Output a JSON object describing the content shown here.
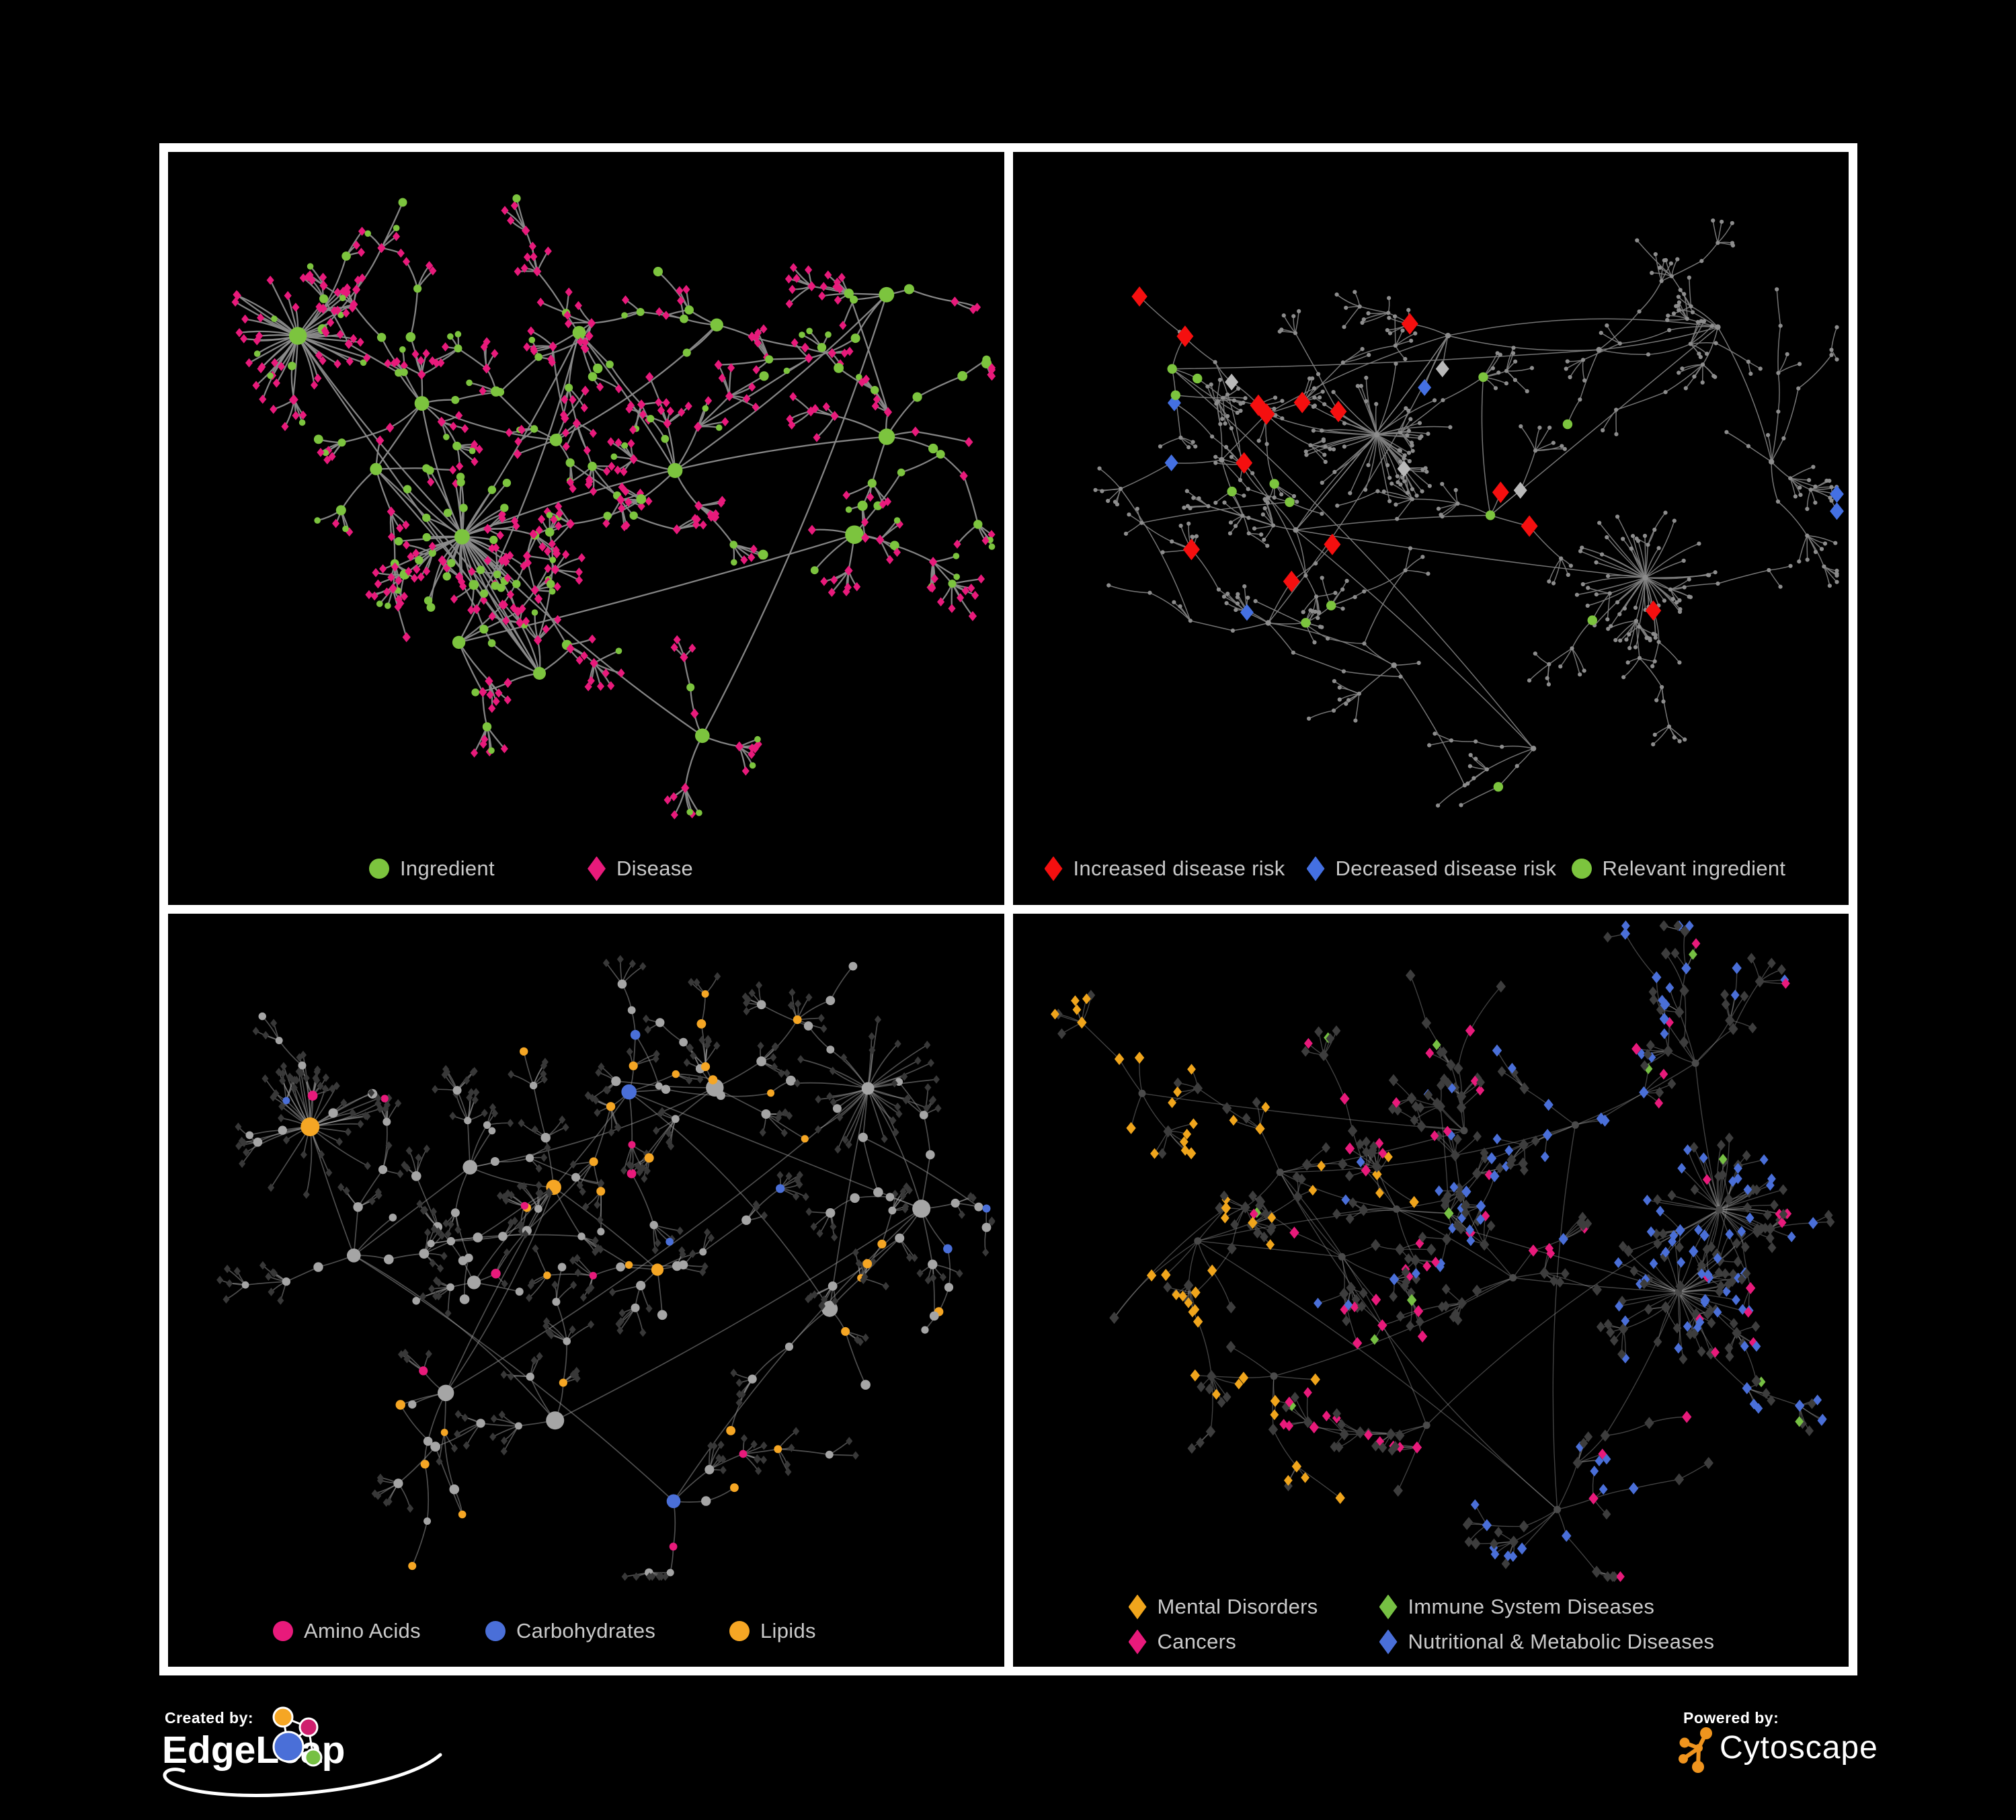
{
  "figure": {
    "background": "#000000",
    "frame_color": "#ffffff",
    "legend_text_color": "#c9c9c9"
  },
  "panels": [
    {
      "id": "ingredient-disease",
      "legend": [
        {
          "label": "Ingredient",
          "shape": "circle",
          "color": "#7cc43e"
        },
        {
          "label": "Disease",
          "shape": "diamond",
          "color": "#e81a7b"
        }
      ]
    },
    {
      "id": "disease-risk",
      "legend": [
        {
          "label": "Increased disease risk",
          "shape": "diamond",
          "color": "#f50f0f"
        },
        {
          "label": "Decreased disease risk",
          "shape": "diamond",
          "color": "#4470e2"
        },
        {
          "label": "Relevant ingredient",
          "shape": "circle",
          "color": "#7cc43e"
        }
      ]
    },
    {
      "id": "nutrient-classes",
      "legend": [
        {
          "label": "Amino Acids",
          "shape": "circle",
          "color": "#e81a7b"
        },
        {
          "label": "Carbohydrates",
          "shape": "circle",
          "color": "#4a6fd8"
        },
        {
          "label": "Lipids",
          "shape": "circle",
          "color": "#f5a624"
        }
      ]
    },
    {
      "id": "disease-classes",
      "legend": [
        {
          "label": "Mental Disorders",
          "shape": "diamond",
          "color": "#f0a51c"
        },
        {
          "label": "Immune System Diseases",
          "shape": "diamond",
          "color": "#76c043"
        },
        {
          "label": "Cancers",
          "shape": "diamond",
          "color": "#e81a7b"
        },
        {
          "label": "Nutritional & Metabolic Diseases",
          "shape": "diamond",
          "color": "#4a6fd8"
        }
      ]
    }
  ],
  "network_colors": {
    "green": "#7cc43e",
    "pink": "#e81a7b",
    "red": "#f50f0f",
    "blue": "#4470e2",
    "orange": "#f5a624",
    "silver": "#b9b9b9",
    "gray_node": "#a5a5a5",
    "dark_diamond": "#383838",
    "br_diamond": "#3d3d3d",
    "br_hub": "#4a4a4a",
    "backbone_gray": "#8d8d8d",
    "edge_tl": "#8b8b8b",
    "edge_tr": "#7f7f7f",
    "edge_bl": "#9b9b9b",
    "edge_br": "#9a9a9a"
  },
  "footer": {
    "created_by_label": "Created by:",
    "created_by_name": "EdgeLeap",
    "powered_by_label": "Powered by:",
    "powered_by_name": "Cytoscape",
    "edgeleap_icon_colors": {
      "orange": "#f5a624",
      "pink": "#cf1f6e",
      "blue": "#4a6fd8",
      "green": "#76c043"
    },
    "cytoscape_icon_color": "#ef941e"
  }
}
